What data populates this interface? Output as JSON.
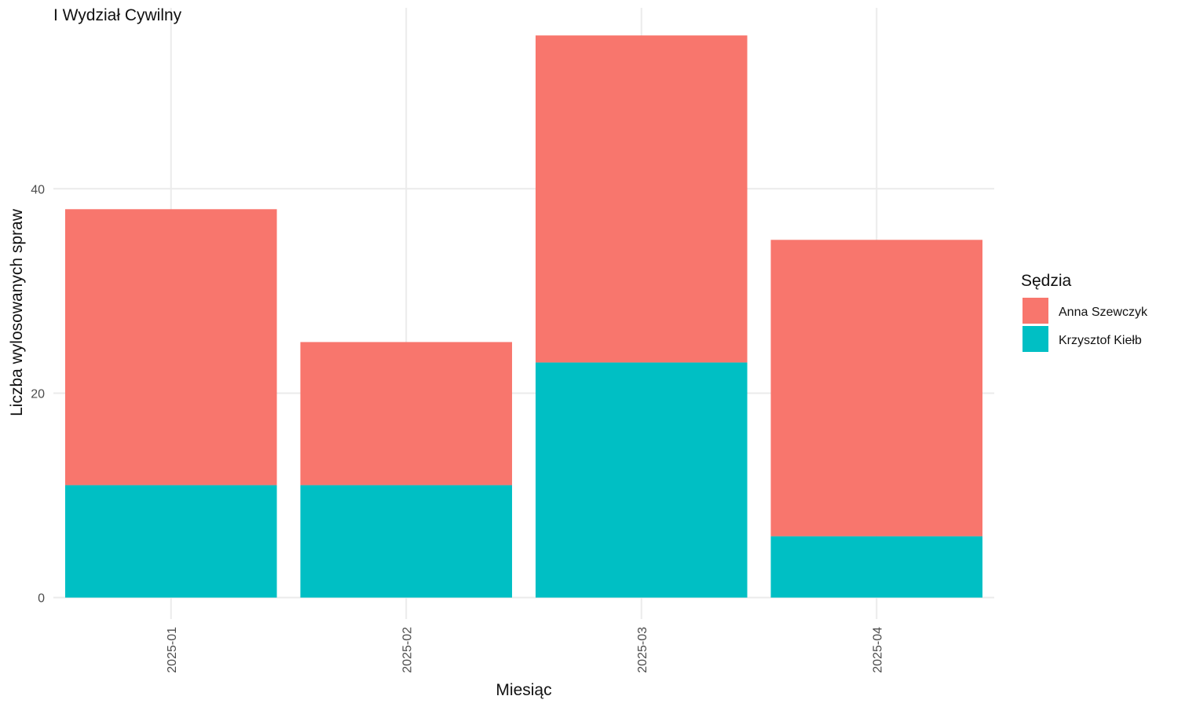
{
  "chart_data": {
    "type": "bar",
    "stacked": true,
    "title": "",
    "subtitle": "I Wydział Cywilny",
    "xlabel": "Miesiąc",
    "ylabel": "Liczba wylosowanych spraw",
    "categories": [
      "2025-01",
      "2025-02",
      "2025-03",
      "2025-04"
    ],
    "series": [
      {
        "name": "Krzysztof Kiełb",
        "color": "#00BFC4",
        "values": [
          11,
          11,
          23,
          6
        ]
      },
      {
        "name": "Anna Szewczyk",
        "color": "#F8766D",
        "values": [
          27,
          14,
          32,
          29
        ]
      }
    ],
    "ylim": [
      -2.1,
      57.7
    ],
    "yticks": [
      0,
      20,
      40
    ],
    "legend": {
      "title": "Sędzia",
      "position": "right",
      "order": [
        "Anna Szewczyk",
        "Krzysztof Kiełb"
      ]
    },
    "grid": true,
    "x_tick_rotation": -90
  }
}
